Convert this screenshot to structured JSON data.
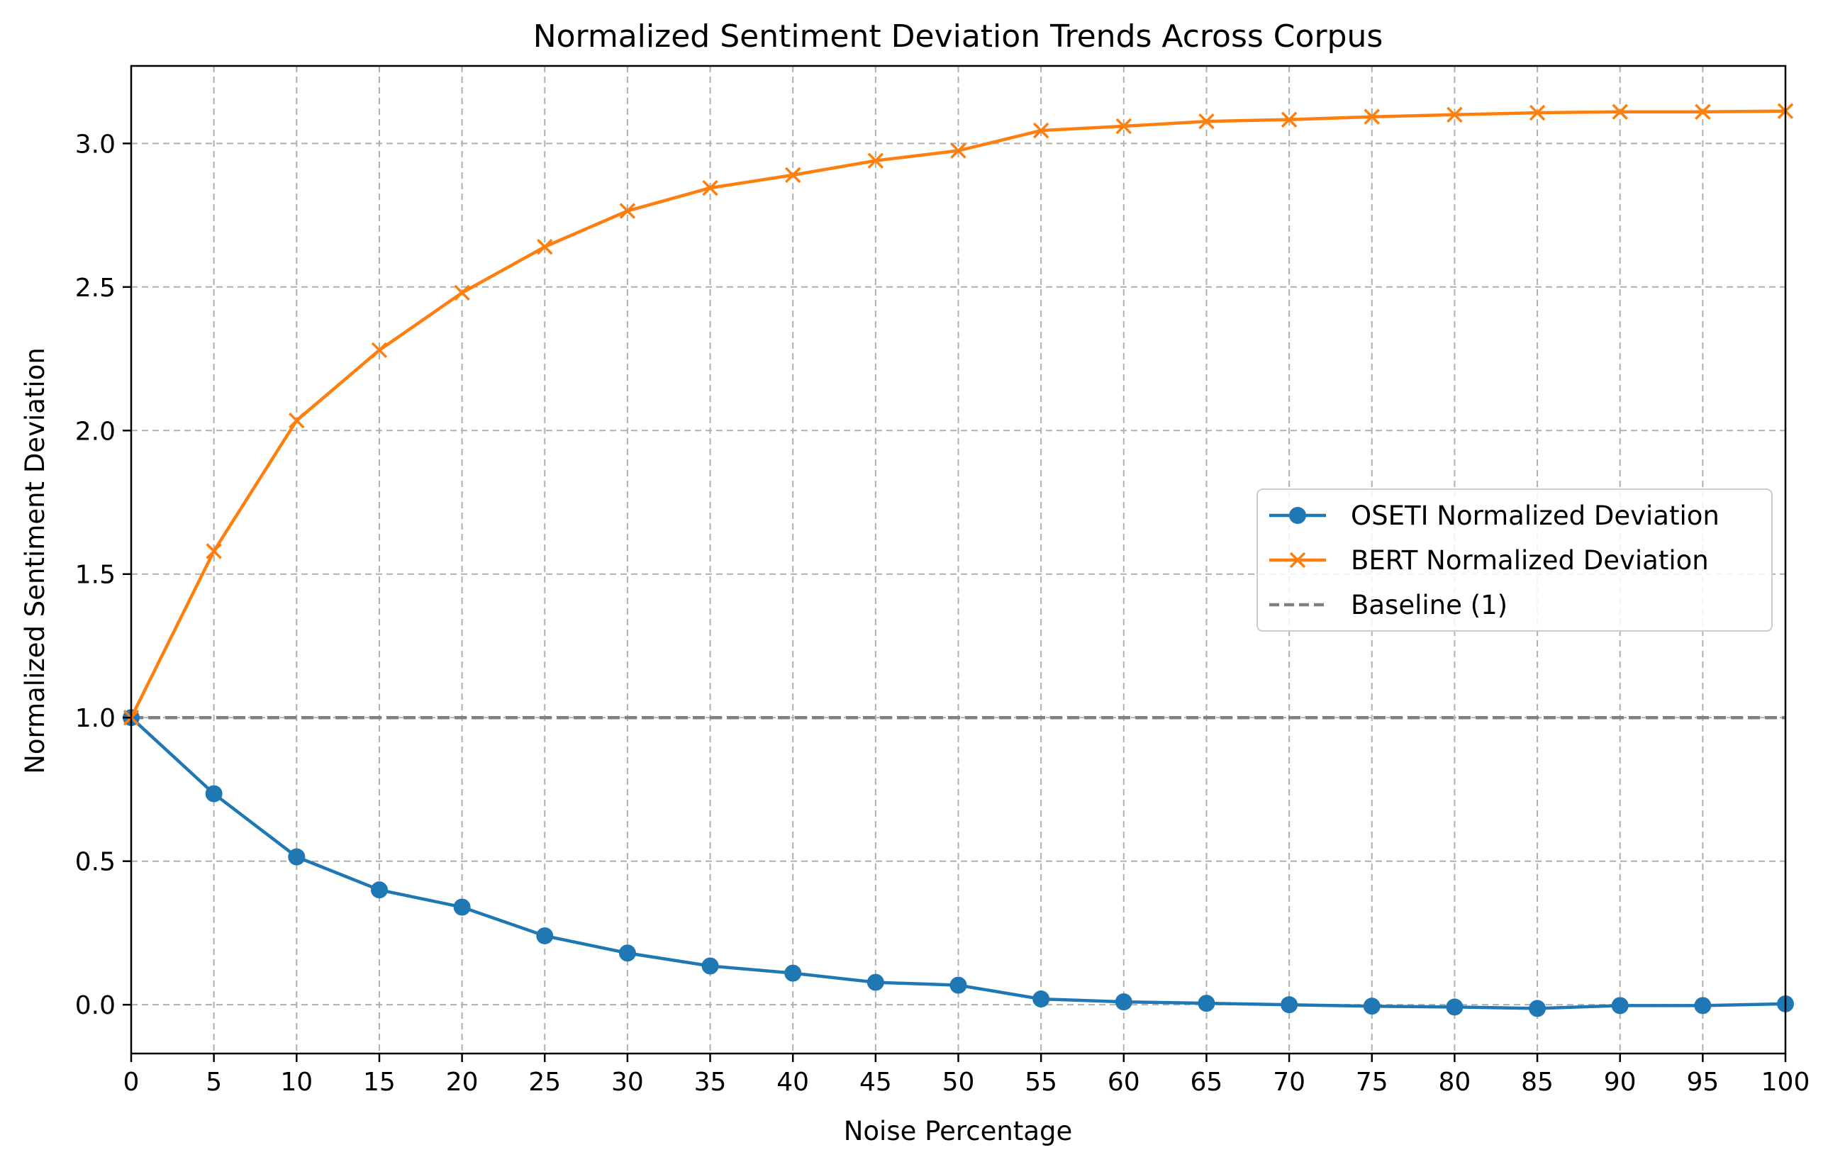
{
  "chart_data": {
    "type": "line",
    "title": "Normalized Sentiment Deviation Trends Across Corpus",
    "xlabel": "Noise Percentage",
    "ylabel": "Normalized Sentiment Deviation",
    "x": [
      0,
      5,
      10,
      15,
      20,
      25,
      30,
      35,
      40,
      45,
      50,
      55,
      60,
      65,
      70,
      75,
      80,
      85,
      90,
      95,
      100
    ],
    "xlim": [
      0,
      100
    ],
    "ylim": [
      -0.17,
      3.27
    ],
    "xticks": [
      "0",
      "5",
      "10",
      "15",
      "20",
      "25",
      "30",
      "35",
      "40",
      "45",
      "50",
      "55",
      "60",
      "65",
      "70",
      "75",
      "80",
      "85",
      "90",
      "95",
      "100"
    ],
    "yticks": [
      "0.0",
      "0.5",
      "1.0",
      "1.5",
      "2.0",
      "2.5",
      "3.0"
    ],
    "ytick_values": [
      0.0,
      0.5,
      1.0,
      1.5,
      2.0,
      2.5,
      3.0
    ],
    "grid": true,
    "legend_position": "center-right",
    "series": [
      {
        "name": "OSETI Normalized Deviation",
        "color": "#1f77b4",
        "marker": "circle",
        "values": [
          1.0,
          0.735,
          0.515,
          0.4,
          0.34,
          0.24,
          0.18,
          0.135,
          0.11,
          0.078,
          0.068,
          0.02,
          0.01,
          0.005,
          0.0,
          -0.005,
          -0.008,
          -0.013,
          -0.003,
          -0.003,
          0.003
        ]
      },
      {
        "name": "BERT Normalized Deviation",
        "color": "#ff7f0e",
        "marker": "x",
        "values": [
          1.0,
          1.58,
          2.035,
          2.28,
          2.48,
          2.64,
          2.765,
          2.845,
          2.89,
          2.94,
          2.975,
          3.045,
          3.06,
          3.077,
          3.083,
          3.093,
          3.1,
          3.107,
          3.11,
          3.11,
          3.113
        ]
      }
    ],
    "reference_lines": [
      {
        "name": "Baseline (1)",
        "y": 1.0,
        "color": "#808080",
        "style": "dashed"
      }
    ]
  }
}
